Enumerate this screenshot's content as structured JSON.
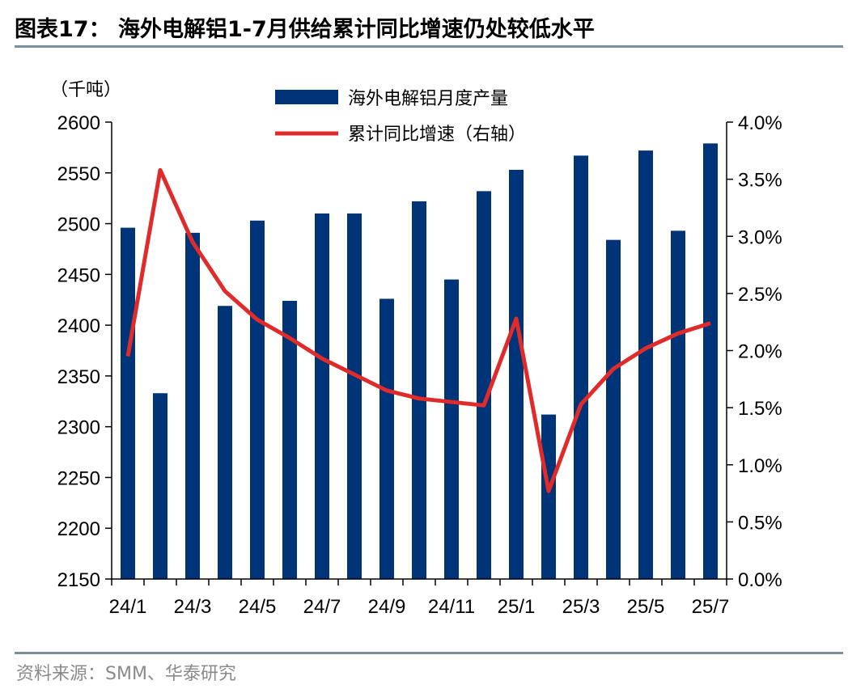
{
  "header": {
    "title": "图表17：  海外电解铝1-7月供给累计同比增速仍处较低水平"
  },
  "footer": {
    "source": "资料来源：SMM、华泰研究"
  },
  "colors": {
    "bar": "#003478",
    "line": "#e02b2b",
    "rule": "#7b8fa1"
  },
  "chart_data": {
    "type": "bar",
    "unit_label": "（千吨）",
    "categories": [
      "24/1",
      "24/2",
      "24/3",
      "24/4",
      "24/5",
      "24/6",
      "24/7",
      "24/8",
      "24/9",
      "24/10",
      "24/11",
      "24/12",
      "25/1",
      "25/2",
      "25/3",
      "25/4",
      "25/5",
      "25/6",
      "25/7"
    ],
    "x_tick_labels": [
      "24/1",
      "24/3",
      "24/5",
      "24/7",
      "24/9",
      "24/11",
      "25/1",
      "25/3",
      "25/5",
      "25/7"
    ],
    "series": [
      {
        "name": "海外电解铝月度产量",
        "type": "bar",
        "axis": "left",
        "values": [
          2496,
          2333,
          2491,
          2419,
          2503,
          2424,
          2510,
          2510,
          2426,
          2522,
          2445,
          2532,
          2553,
          2312,
          2567,
          2484,
          2572,
          2493,
          2579
        ]
      },
      {
        "name": "累计同比增速（右轴）",
        "type": "line",
        "axis": "right",
        "values": [
          1.95,
          3.58,
          2.95,
          2.52,
          2.27,
          2.11,
          1.93,
          1.79,
          1.65,
          1.58,
          1.55,
          1.52,
          2.28,
          0.77,
          1.53,
          1.84,
          2.02,
          2.15,
          2.24
        ]
      }
    ],
    "y_left": {
      "min": 2150,
      "max": 2600,
      "ticks": [
        2150,
        2200,
        2250,
        2300,
        2350,
        2400,
        2450,
        2500,
        2550,
        2600
      ]
    },
    "y_right": {
      "min": 0,
      "max": 4,
      "ticks": [
        "0.0%",
        "0.5%",
        "1.0%",
        "1.5%",
        "2.0%",
        "2.5%",
        "3.0%",
        "3.5%",
        "4.0%"
      ]
    },
    "legend": "top-center",
    "grid": false
  }
}
